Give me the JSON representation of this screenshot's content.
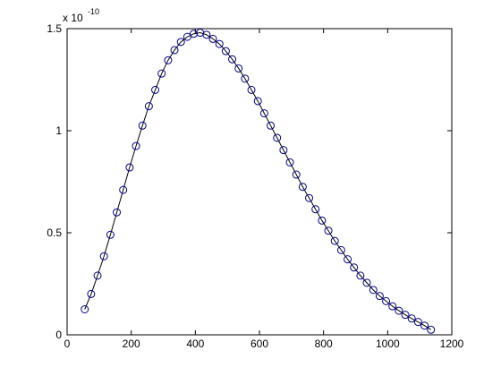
{
  "chart_data": {
    "type": "line",
    "y_exponent_label": "x 10",
    "y_exponent": "-10",
    "x": [
      55,
      75,
      95,
      115,
      135,
      155,
      175,
      195,
      215,
      235,
      255,
      275,
      295,
      315,
      335,
      355,
      375,
      395,
      415,
      435,
      455,
      475,
      495,
      515,
      535,
      555,
      575,
      595,
      615,
      635,
      655,
      675,
      695,
      715,
      735,
      755,
      775,
      795,
      815,
      835,
      855,
      875,
      895,
      915,
      935,
      955,
      975,
      995,
      1015,
      1035,
      1055,
      1075,
      1095,
      1115,
      1135
    ],
    "series": [
      {
        "color": "#000080",
        "line_color": "#000000",
        "marker": "circle",
        "values": [
          0.125,
          0.2,
          0.29,
          0.385,
          0.49,
          0.6,
          0.71,
          0.82,
          0.925,
          1.025,
          1.12,
          1.2,
          1.28,
          1.345,
          1.395,
          1.435,
          1.46,
          1.475,
          1.48,
          1.47,
          1.45,
          1.425,
          1.39,
          1.35,
          1.305,
          1.255,
          1.2,
          1.145,
          1.085,
          1.025,
          0.965,
          0.905,
          0.845,
          0.785,
          0.725,
          0.67,
          0.615,
          0.56,
          0.51,
          0.46,
          0.415,
          0.37,
          0.33,
          0.29,
          0.255,
          0.22,
          0.19,
          0.165,
          0.14,
          0.118,
          0.098,
          0.08,
          0.063,
          0.045,
          0.025
        ]
      }
    ],
    "xlim": [
      0,
      1200
    ],
    "xticks": [
      0,
      200,
      400,
      600,
      800,
      1000,
      1200
    ],
    "ylim": [
      0,
      1.5
    ],
    "yticks": [
      0,
      0.5,
      1,
      1.5
    ],
    "grid": false,
    "box": true
  }
}
